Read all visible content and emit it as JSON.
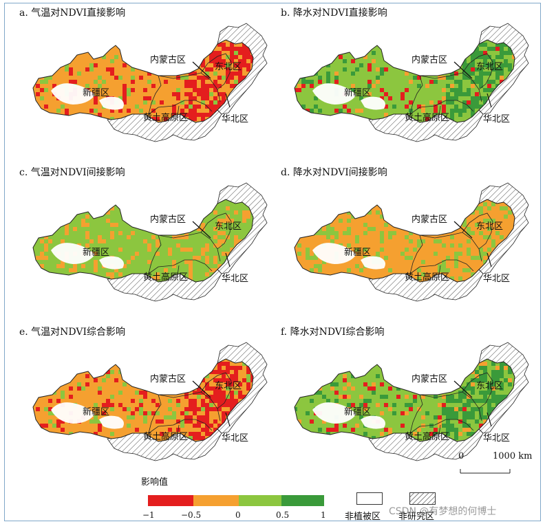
{
  "colors": {
    "red": "#e41e1e",
    "orange": "#f5a030",
    "light_green": "#8cc63f",
    "green": "#3a9a3a",
    "hatch": "#444444",
    "border": "#222222"
  },
  "panels": [
    {
      "title": "a. 气温对NDVI直接影响",
      "base": "orange",
      "accent": "red",
      "scatter": [
        "red",
        "light_green"
      ]
    },
    {
      "title": "b. 降水对NDVI直接影响",
      "base": "light_green",
      "accent": "green",
      "scatter": [
        "orange",
        "green",
        "red"
      ]
    },
    {
      "title": "c. 气温对NDVI间接影响",
      "base": "light_green",
      "accent": "light_green",
      "scatter": [
        "orange"
      ]
    },
    {
      "title": "d. 降水对NDVI间接影响",
      "base": "orange",
      "accent": "orange",
      "scatter": [
        "light_green"
      ]
    },
    {
      "title": "e. 气温对NDVI综合影响",
      "base": "orange",
      "accent": "red",
      "scatter": [
        "red",
        "light_green"
      ]
    },
    {
      "title": "f. 降水对NDVI综合影响",
      "base": "light_green",
      "accent": "green",
      "scatter": [
        "orange",
        "green",
        "red"
      ]
    }
  ],
  "region_labels": {
    "inner_mongolia": "内蒙古区",
    "northeast": "东北区",
    "xinjiang": "新疆区",
    "loess_plateau": "黄土高原区",
    "north_china": "华北区"
  },
  "legend": {
    "title": "影响值",
    "ticks": [
      "−1",
      "−0.5",
      "0",
      "0.5",
      "1"
    ],
    "non_vegetated": "非植被区",
    "non_study": "非研究区"
  },
  "scale_bar": {
    "start": "0",
    "end": "1000 km"
  },
  "watermark": "CSDN @有梦想的何博士"
}
